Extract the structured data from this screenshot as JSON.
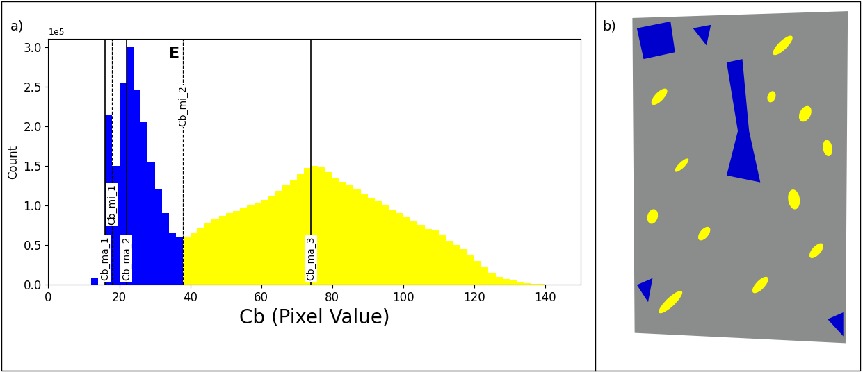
{
  "panels": [
    "a)",
    "b)"
  ],
  "chart_data": {
    "type": "histogram",
    "xlabel": "Cb (Pixel Value)",
    "ylabel": "Count",
    "ylabel_multiplier": "1e5",
    "xlim": [
      0,
      150
    ],
    "ylim": [
      0,
      3.1
    ],
    "xticks": [
      0,
      20,
      40,
      60,
      80,
      100,
      120,
      140
    ],
    "yticks": [
      0.0,
      0.5,
      1.0,
      1.5,
      2.0,
      2.5,
      3.0
    ],
    "series": [
      {
        "color": "#0000ff",
        "bins": [
          12,
          14,
          16,
          18,
          20,
          22,
          24,
          26,
          28,
          30,
          32,
          34,
          36,
          38
        ],
        "values": [
          0.08,
          0,
          2.15,
          1.5,
          2.55,
          3.0,
          2.45,
          2.05,
          1.55,
          1.2,
          0.9,
          0.65,
          0.6
        ]
      },
      {
        "color": "#ffff00",
        "bins": [
          38,
          40,
          42,
          44,
          46,
          48,
          50,
          52,
          54,
          56,
          58,
          60,
          62,
          64,
          66,
          68,
          70,
          72,
          74,
          76,
          78,
          80,
          82,
          84,
          86,
          88,
          90,
          92,
          94,
          96,
          98,
          100,
          102,
          104,
          106,
          108,
          110,
          112,
          114,
          116,
          118,
          120,
          122,
          124,
          126,
          128,
          130,
          132,
          134,
          136,
          138,
          140
        ],
        "values": [
          0.6,
          0.65,
          0.72,
          0.78,
          0.83,
          0.87,
          0.9,
          0.93,
          0.97,
          1.0,
          1.03,
          1.07,
          1.12,
          1.18,
          1.25,
          1.32,
          1.4,
          1.47,
          1.5,
          1.48,
          1.42,
          1.35,
          1.3,
          1.25,
          1.2,
          1.15,
          1.1,
          1.05,
          1.0,
          0.95,
          0.9,
          0.85,
          0.8,
          0.75,
          0.7,
          0.68,
          0.62,
          0.55,
          0.5,
          0.45,
          0.38,
          0.3,
          0.22,
          0.15,
          0.1,
          0.07,
          0.05,
          0.03,
          0.02,
          0.01,
          0.005
        ]
      }
    ],
    "thresholds": [
      {
        "x": 16,
        "label": "Cb_ma_1",
        "line_style": "solid"
      },
      {
        "x": 18,
        "label": "Cb_mi_1",
        "line_style": "dashed"
      },
      {
        "x": 22,
        "label": "Cb_ma_2",
        "line_style": "solid"
      },
      {
        "x": 38,
        "label": "Cb_mi_2",
        "line_style": "dashed"
      },
      {
        "x": 74,
        "label": "Cb_ma_3",
        "line_style": "solid"
      }
    ],
    "annotations": [
      "E"
    ]
  }
}
